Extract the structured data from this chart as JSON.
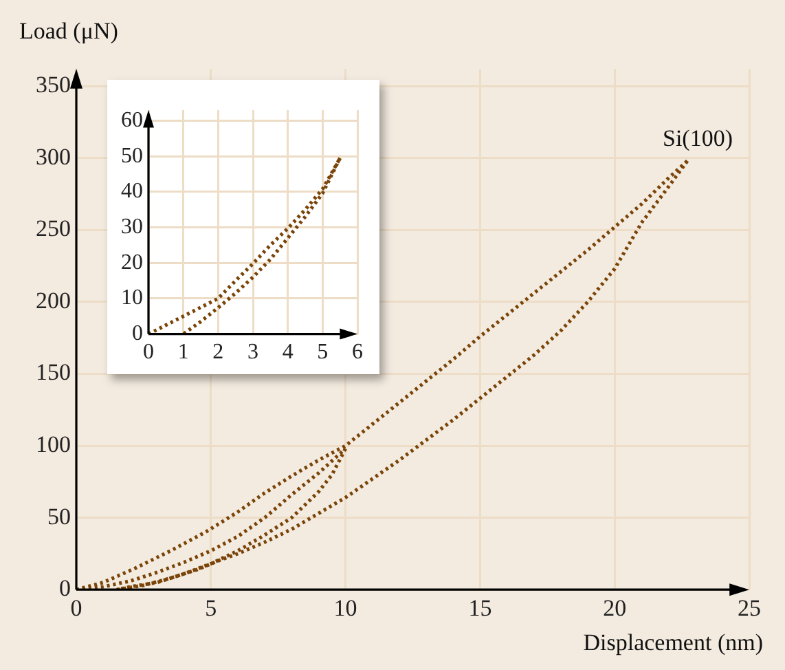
{
  "chart_data": [
    {
      "type": "line",
      "xlabel": "Displacement (nm)",
      "ylabel": "Load (μN)",
      "annotations": [
        "Si(100)"
      ],
      "xlim": [
        0,
        25
      ],
      "ylim": [
        0,
        362
      ],
      "xticks": [
        0,
        5,
        10,
        15,
        20,
        25
      ],
      "yticks": [
        0,
        50,
        100,
        150,
        200,
        250,
        300,
        350
      ],
      "grid": true,
      "line_style": "dotted",
      "series": [
        {
          "color": "#7a4408",
          "x": [
            0,
            1,
            2.2,
            3.5,
            4.8,
            6,
            6.9,
            8,
            9,
            10,
            11,
            12,
            13,
            14,
            15,
            16,
            17,
            18,
            19,
            20,
            21,
            22,
            22.7
          ],
          "values": [
            0,
            5,
            15,
            27,
            40,
            54,
            66,
            79,
            90,
            100,
            115,
            130,
            145,
            160,
            176,
            191,
            206,
            221,
            236,
            252,
            268,
            286,
            298
          ]
        },
        {
          "color": "#7a4408",
          "x": [
            22.7,
            22,
            21,
            20,
            19,
            18,
            17,
            16,
            15,
            14,
            13,
            12,
            11,
            10,
            9,
            8,
            7,
            6,
            5.4,
            4.5,
            3.5,
            2.5,
            1.5
          ],
          "values": [
            298,
            280,
            255,
            223,
            200,
            180,
            163,
            148,
            133,
            118,
            104,
            90,
            77,
            64,
            53,
            42,
            33,
            25,
            21,
            14,
            8,
            3,
            0
          ]
        },
        {
          "color": "#7a4408",
          "x": [
            0,
            1,
            2,
            3,
            4,
            5,
            6,
            7,
            8,
            9,
            10
          ],
          "values": [
            0,
            2,
            6,
            12,
            19,
            27,
            37,
            50,
            66,
            81,
            98
          ]
        },
        {
          "color": "#7a4408",
          "x": [
            10,
            9.5,
            9,
            8,
            7,
            6,
            5,
            4,
            3,
            2,
            1.5
          ],
          "values": [
            98,
            80,
            68,
            50,
            38,
            27,
            18,
            11,
            5,
            2,
            0
          ]
        }
      ]
    },
    {
      "type": "line",
      "xlim": [
        0,
        6
      ],
      "ylim": [
        0,
        63
      ],
      "xticks": [
        0,
        1,
        2,
        3,
        4,
        5,
        6
      ],
      "yticks": [
        0,
        10,
        20,
        30,
        40,
        50,
        60
      ],
      "grid": true,
      "line_style": "dotted",
      "series": [
        {
          "color": "#7a4408",
          "x": [
            0,
            0.5,
            1,
            1.5,
            2,
            2.5,
            3,
            3.5,
            4,
            4.5,
            5,
            5.5
          ],
          "values": [
            0,
            2.5,
            5,
            7.5,
            10,
            15,
            19.8,
            25,
            29.7,
            35,
            40.8,
            49.5
          ]
        },
        {
          "color": "#7a4408",
          "x": [
            5.5,
            5,
            4.5,
            4,
            3.5,
            3,
            2.5,
            2,
            1.5,
            1
          ],
          "values": [
            49.5,
            39.6,
            33,
            27,
            21,
            16,
            11.5,
            7.4,
            3.5,
            0
          ]
        }
      ]
    }
  ]
}
